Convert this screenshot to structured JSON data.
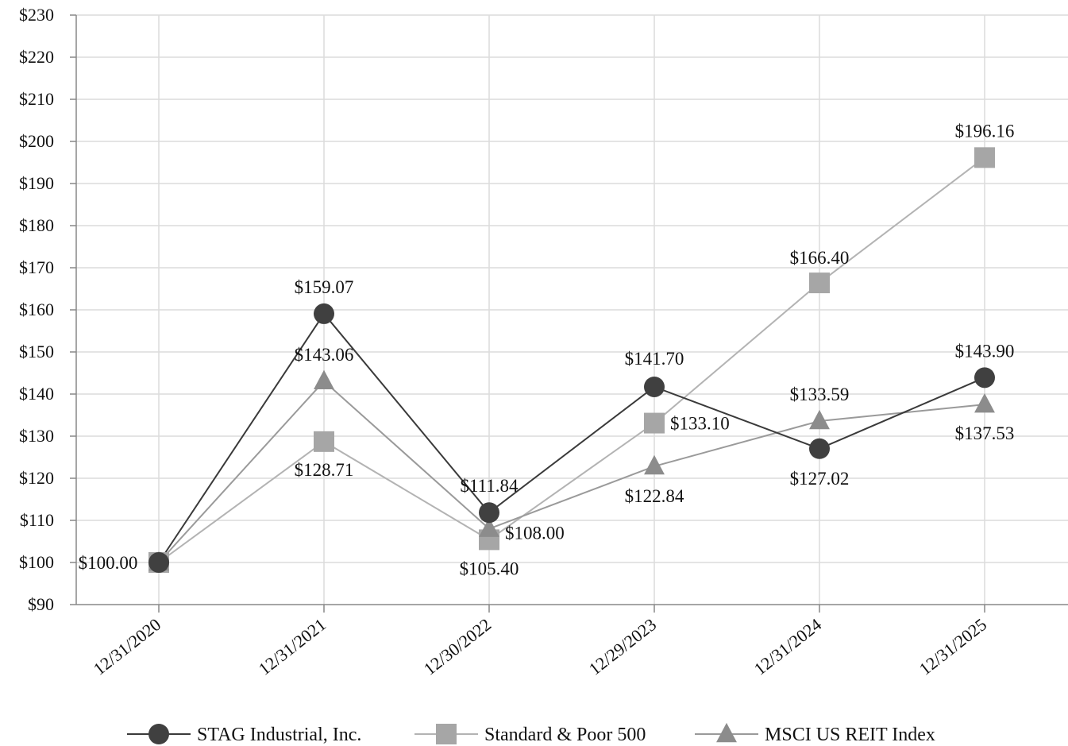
{
  "chart_data": {
    "type": "line",
    "title": "",
    "xlabel": "",
    "ylabel": "",
    "categories": [
      "12/31/2020",
      "12/31/2021",
      "12/30/2022",
      "12/29/2023",
      "12/31/2024",
      "12/31/2025"
    ],
    "ylim": [
      90,
      230
    ],
    "y_ticks": [
      90,
      100,
      110,
      120,
      130,
      140,
      150,
      160,
      170,
      180,
      190,
      200,
      210,
      220,
      230
    ],
    "y_tick_labels": [
      "$90",
      "$100",
      "$110",
      "$120",
      "$130",
      "$140",
      "$150",
      "$160",
      "$170",
      "$180",
      "$190",
      "$200",
      "$210",
      "$220",
      "$230"
    ],
    "grid": true,
    "legend_position": "bottom",
    "series": [
      {
        "name": "STAG Industrial, Inc.",
        "marker": "circle",
        "color": "#404040",
        "line_color": "#3a3a3a",
        "values": [
          100.0,
          159.07,
          111.84,
          141.7,
          127.02,
          143.9
        ],
        "labels": [
          "$100.00",
          "$159.07",
          "$111.84",
          "$141.70",
          "$127.02",
          "$143.90"
        ]
      },
      {
        "name": "Standard & Poor 500",
        "marker": "square",
        "color": "#a6a6a6",
        "line_color": "#b3b3b3",
        "values": [
          100.0,
          128.71,
          105.4,
          133.1,
          166.4,
          196.16
        ],
        "labels": [
          "",
          "$128.71",
          "$105.40",
          "$133.10",
          "$166.40",
          "$196.16"
        ]
      },
      {
        "name": "MSCI US REIT Index",
        "marker": "triangle",
        "color": "#8c8c8c",
        "line_color": "#9a9a9a",
        "values": [
          100.0,
          143.06,
          108.0,
          122.84,
          133.59,
          137.53
        ],
        "labels": [
          "",
          "$143.06",
          "$108.00",
          "$122.84",
          "$133.59",
          "$137.53"
        ]
      }
    ]
  }
}
